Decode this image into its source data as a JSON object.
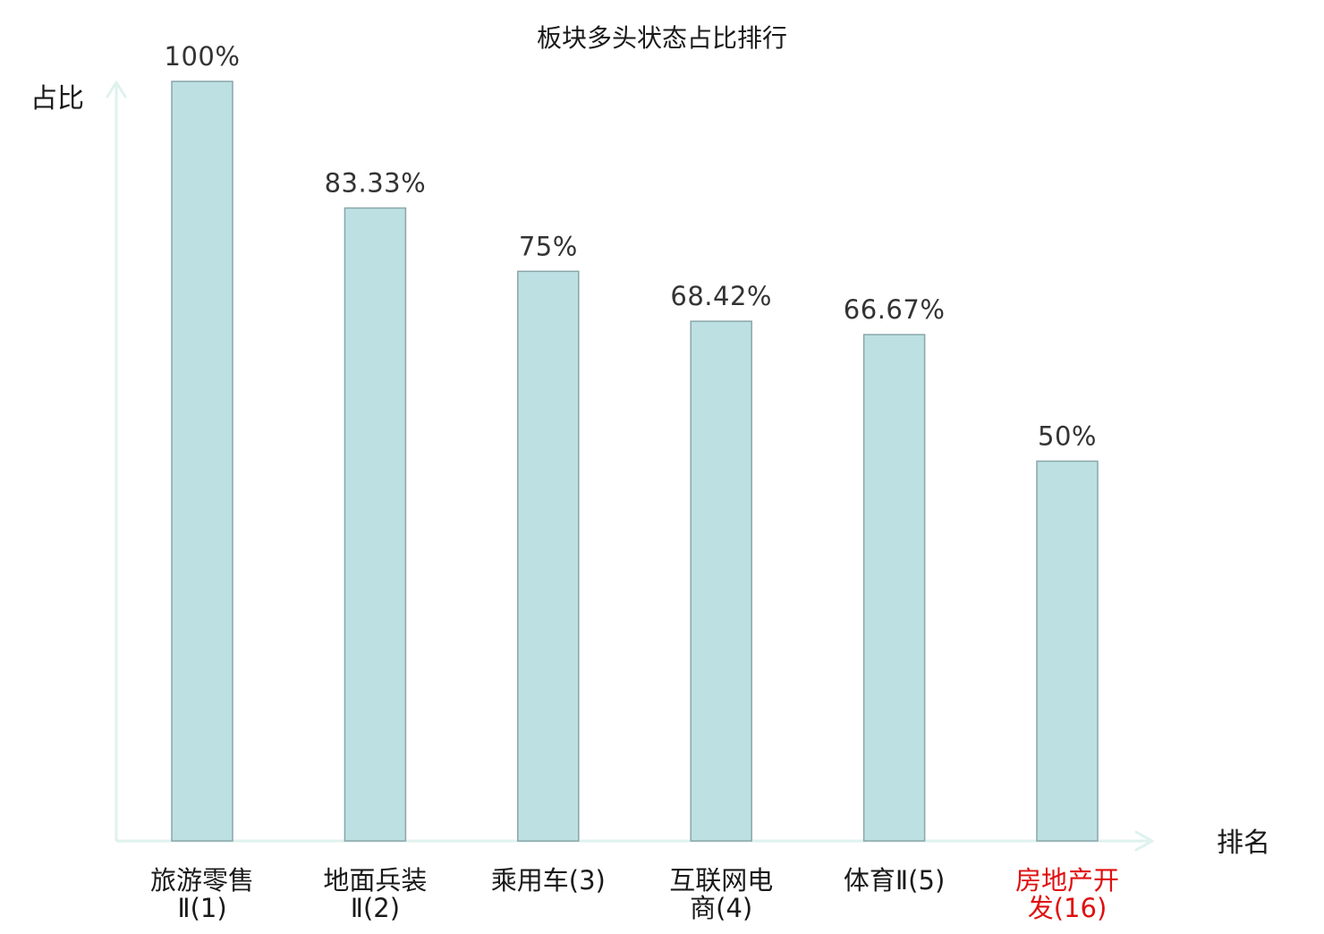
{
  "chart_data": {
    "type": "bar",
    "title": "板块多头状态占比排行",
    "ylabel": "占比",
    "xlabel": "排名",
    "ylim": [
      0,
      100
    ],
    "grid": false,
    "legend": "none",
    "categories": [
      {
        "lines": [
          "旅游零售",
          "Ⅱ(1)"
        ],
        "highlight": false
      },
      {
        "lines": [
          "地面兵装",
          "Ⅱ(2)"
        ],
        "highlight": false
      },
      {
        "lines": [
          "乘用车(3)"
        ],
        "highlight": false
      },
      {
        "lines": [
          "互联网电",
          "商(4)"
        ],
        "highlight": false
      },
      {
        "lines": [
          "体育Ⅱ(5)"
        ],
        "highlight": false
      },
      {
        "lines": [
          "房地产开",
          "发(16)"
        ],
        "highlight": true
      }
    ],
    "values": [
      100,
      83.33,
      75,
      68.42,
      66.67,
      50
    ],
    "value_labels": [
      "100%",
      "83.33%",
      "75%",
      "68.42%",
      "66.67%",
      "50%"
    ],
    "colors": {
      "bar_fill": "#bde0e3",
      "bar_stroke": "#8aa6aa",
      "axis": "#dff2ee",
      "text": "#1a1a1a",
      "value_text": "#333333",
      "highlight_text": "#e01010"
    }
  }
}
